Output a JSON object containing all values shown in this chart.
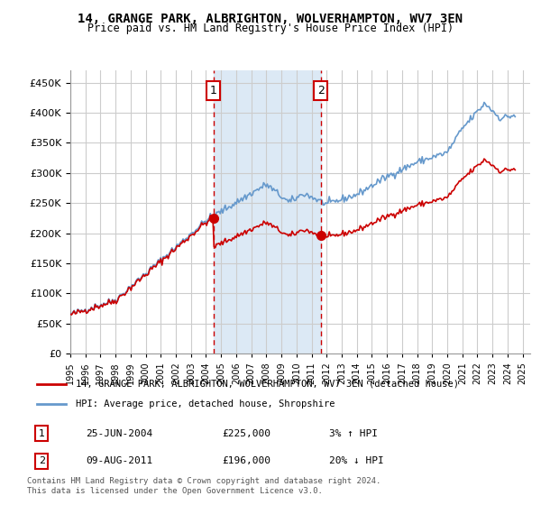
{
  "title": "14, GRANGE PARK, ALBRIGHTON, WOLVERHAMPTON, WV7 3EN",
  "subtitle": "Price paid vs. HM Land Registry's House Price Index (HPI)",
  "legend_line1": "14, GRANGE PARK, ALBRIGHTON, WOLVERHAMPTON, WV7 3EN (detached house)",
  "legend_line2": "HPI: Average price, detached house, Shropshire",
  "sale1_date": "25-JUN-2004",
  "sale1_price": 225000,
  "sale1_hpi": "3% ↑ HPI",
  "sale1_label": "1",
  "sale2_date": "09-AUG-2011",
  "sale2_price": 196000,
  "sale2_hpi": "20% ↓ HPI",
  "sale2_label": "2",
  "footnote": "Contains HM Land Registry data © Crown copyright and database right 2024.\nThis data is licensed under the Open Government Licence v3.0.",
  "property_color": "#cc0000",
  "hpi_color": "#6699cc",
  "sale_marker_color": "#cc0000",
  "vline_color": "#cc0000",
  "highlight_color": "#dce9f5",
  "background_color": "#ffffff",
  "grid_color": "#cccccc",
  "ylim": [
    0,
    470000
  ],
  "yticks": [
    0,
    50000,
    100000,
    150000,
    200000,
    250000,
    300000,
    350000,
    400000,
    450000
  ],
  "xlim_start": 1995,
  "xlim_end": 2025.5,
  "sale1_x": 2004.48,
  "sale2_x": 2011.6
}
